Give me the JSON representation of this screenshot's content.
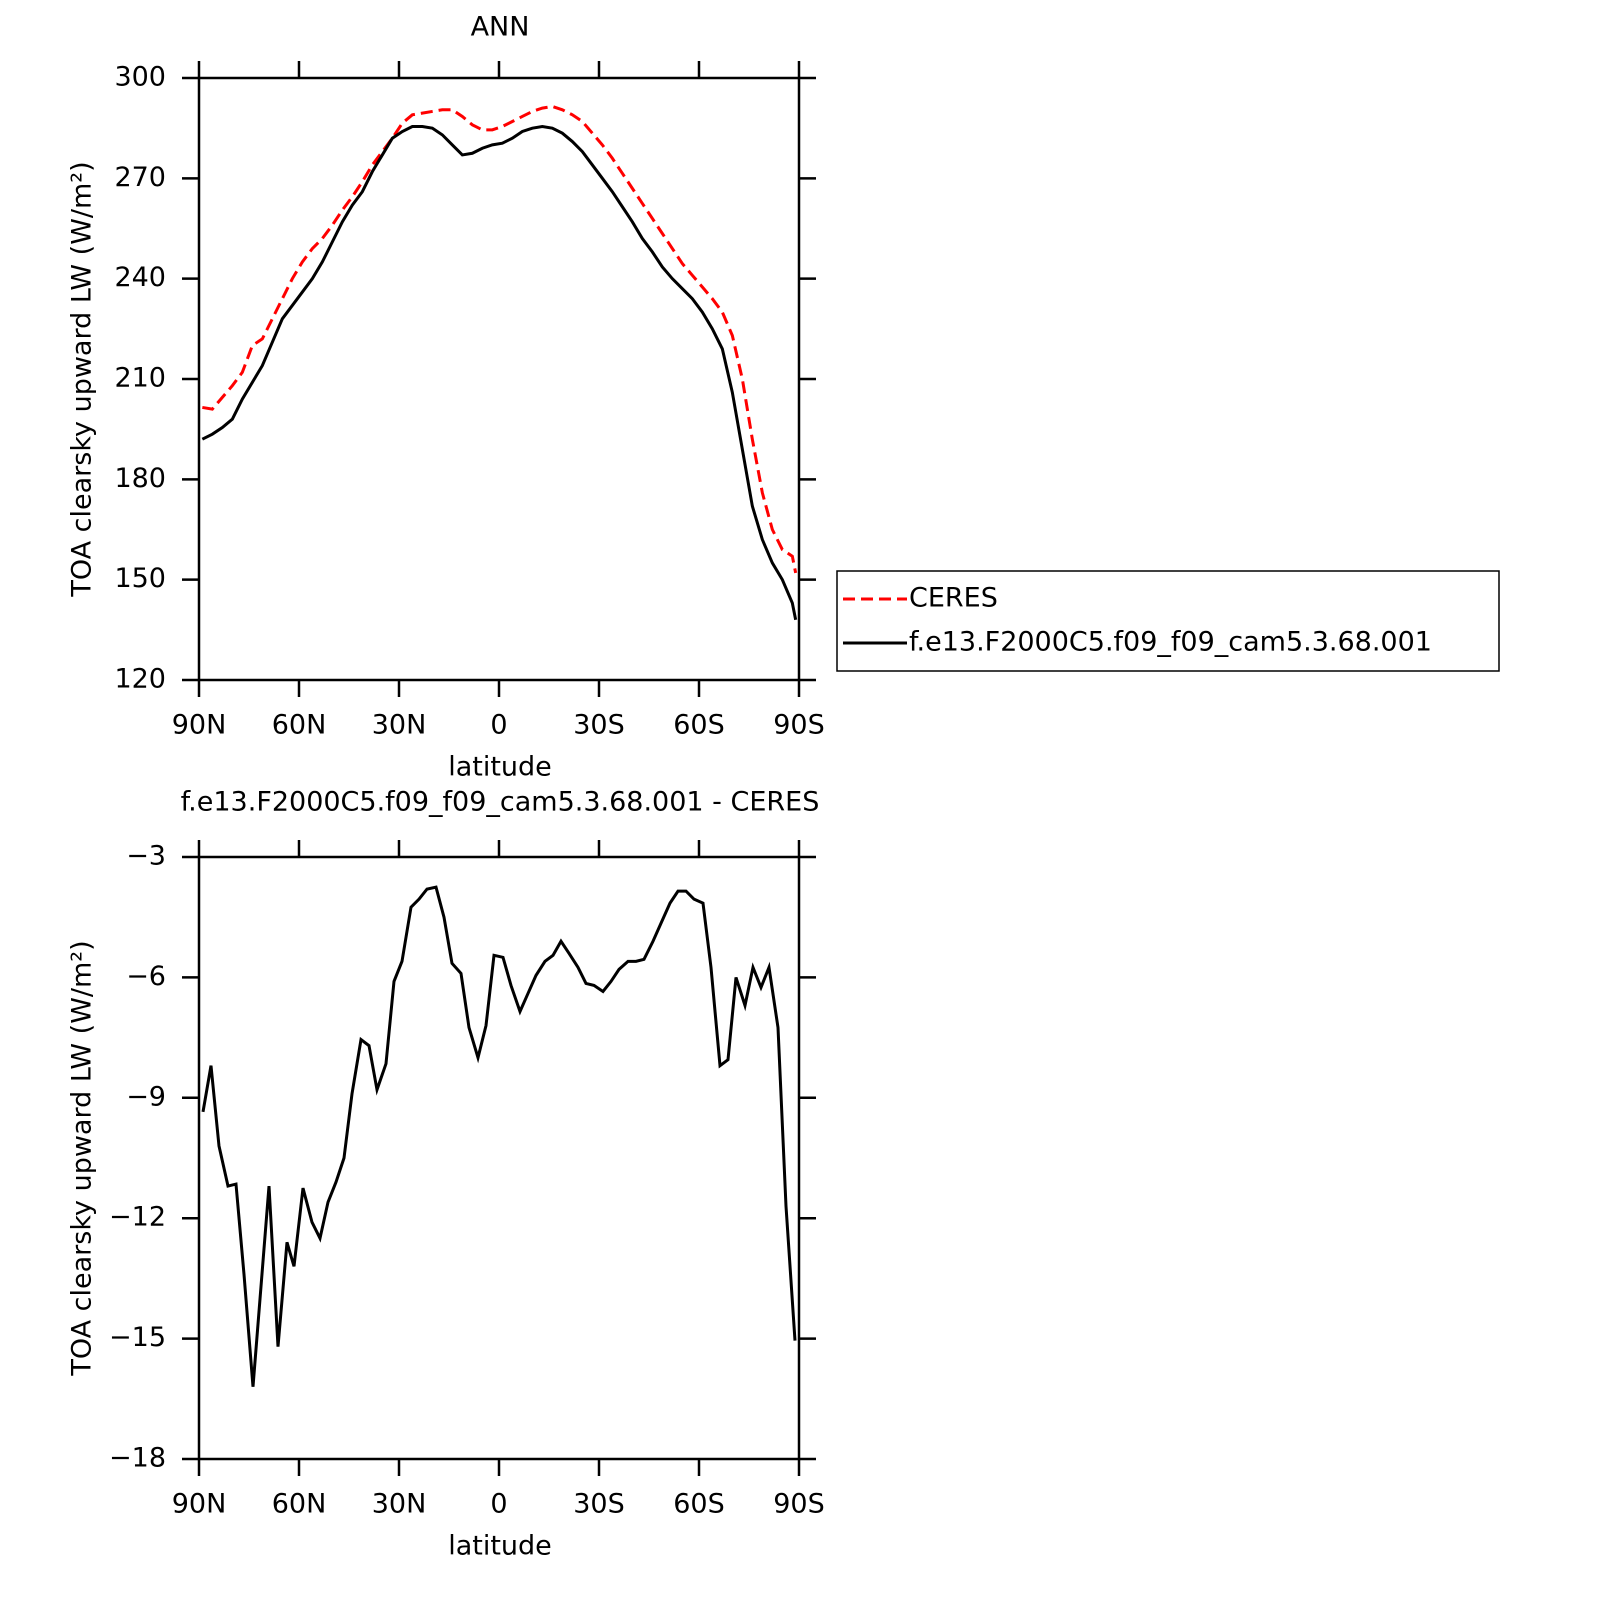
{
  "chart_data": [
    {
      "type": "line",
      "title": "ANN",
      "x_label": "latitude",
      "y_label": "TOA clearsky upward LW (W/m²)",
      "x": [
        89,
        86,
        83,
        80,
        77,
        74,
        71,
        68,
        65,
        62,
        59,
        56,
        53,
        50,
        47,
        44,
        41,
        38,
        35,
        32,
        29,
        26,
        23,
        20,
        17,
        14,
        11,
        8,
        5,
        2,
        -1,
        -4,
        -7,
        -10,
        -13,
        -16,
        -19,
        -22,
        -25,
        -28,
        -31,
        -34,
        -37,
        -40,
        -43,
        -46,
        -49,
        -52,
        -55,
        -58,
        -61,
        -64,
        -67,
        -70,
        -73,
        -76,
        -79,
        -82,
        -85,
        -88,
        -89
      ],
      "series": [
        {
          "name": "CERES",
          "color": "#ff0000",
          "dashed": true,
          "values": [
            201.5,
            201,
            204.5,
            208,
            212,
            220,
            222,
            228,
            234,
            240,
            245,
            249,
            252,
            256,
            260.5,
            264.5,
            269,
            274,
            278,
            282,
            286.5,
            289,
            289.5,
            290,
            290.5,
            290.5,
            288.5,
            286,
            284.5,
            284.5,
            285.5,
            287,
            288.5,
            290,
            291,
            291.5,
            290.5,
            289,
            287,
            283.5,
            280,
            276,
            271.5,
            267,
            262.5,
            258,
            253.5,
            249,
            244.5,
            241,
            237.5,
            234,
            230,
            223,
            210,
            192,
            176,
            165,
            159,
            157,
            152
          ]
        },
        {
          "name": "f.e13.F2000C5.f09_f09_cam5.3.68.001",
          "color": "#000000",
          "dashed": false,
          "values": [
            192,
            193.5,
            195.5,
            198,
            204,
            209,
            214,
            221,
            228,
            232,
            236,
            240,
            245,
            251,
            257,
            262,
            266,
            272,
            277,
            282,
            284,
            285.5,
            285.5,
            285,
            283,
            280,
            277,
            277.5,
            279,
            280,
            280.5,
            282,
            284,
            285,
            285.5,
            285,
            283.5,
            281,
            278,
            274,
            270,
            266,
            261.5,
            257,
            252,
            248,
            243.5,
            240,
            237,
            234,
            230,
            225,
            219,
            206,
            189,
            172,
            162,
            155,
            150,
            143,
            138
          ]
        }
      ],
      "xlim": [
        90,
        -90
      ],
      "xticks": [
        {
          "value": 90,
          "label": "90N"
        },
        {
          "value": 60,
          "label": "60N"
        },
        {
          "value": 30,
          "label": "30N"
        },
        0,
        {
          "value": -30,
          "label": "30S"
        },
        {
          "value": -60,
          "label": "60S"
        },
        {
          "value": -90,
          "label": "90S"
        }
      ],
      "ylim": [
        120,
        300
      ],
      "yticks": [
        120,
        150,
        180,
        210,
        240,
        270,
        300
      ],
      "legend": "right"
    },
    {
      "type": "line",
      "title": "f.e13.F2000C5.f09_f09_cam5.3.68.001 - CERES",
      "x_label": "latitude",
      "y_label": "TOA clearsky upward LW (W/m²)",
      "x": [
        88.8,
        86.4,
        84,
        81.3,
        78.9,
        76.5,
        73.8,
        69,
        66.3,
        63.6,
        61.5,
        58.8,
        56.1,
        53.7,
        51.3,
        48.9,
        46.5,
        44.1,
        41.4,
        39,
        36.6,
        33.9,
        31.5,
        29.1,
        26.4,
        24,
        21.6,
        18.9,
        16.5,
        14.1,
        11.4,
        9,
        6.3,
        3.9,
        1.5,
        -1.2,
        -3.6,
        -6.3,
        -8.7,
        -11.1,
        -13.8,
        -16.2,
        -18.6,
        -21,
        -23.7,
        -26.1,
        -28.5,
        -31.2,
        -33.6,
        -36,
        -38.7,
        -41.1,
        -43.5,
        -46.2,
        -48.6,
        -51.3,
        -53.7,
        -56.1,
        -58.5,
        -61.2,
        -63.6,
        -66.3,
        -68.7,
        -71.1,
        -73.8,
        -76.2,
        -78.6,
        -81,
        -83.7,
        -86.1,
        -88.8
      ],
      "series": [
        {
          "color": "#000000",
          "dashed": false,
          "values": [
            -9.35,
            -8.2,
            -10.2,
            -11.2,
            -11.15,
            -13.4,
            -16.2,
            -11.2,
            -15.2,
            -12.6,
            -13.2,
            -11.25,
            -12.1,
            -12.5,
            -11.6,
            -11.1,
            -10.5,
            -8.9,
            -7.55,
            -7.7,
            -8.8,
            -8.15,
            -6.1,
            -5.6,
            -4.25,
            -4.05,
            -3.8,
            -3.75,
            -4.5,
            -5.65,
            -5.9,
            -7.25,
            -8,
            -7.2,
            -5.45,
            -5.5,
            -6.2,
            -6.85,
            -6.4,
            -5.95,
            -5.6,
            -5.45,
            -5.1,
            -5.4,
            -5.75,
            -6.15,
            -6.2,
            -6.35,
            -6.1,
            -5.8,
            -5.6,
            -5.6,
            -5.55,
            -5.1,
            -4.65,
            -4.15,
            -3.85,
            -3.85,
            -4.05,
            -4.15,
            -5.75,
            -8.2,
            -8.05,
            -6,
            -6.7,
            -5.75,
            -6.25,
            -5.75,
            -7.25,
            -11.7,
            -15.05
          ]
        }
      ],
      "xlim": [
        90,
        -90
      ],
      "xticks": [
        {
          "value": 90,
          "label": "90N"
        },
        {
          "value": 60,
          "label": "60N"
        },
        {
          "value": 30,
          "label": "30N"
        },
        0,
        {
          "value": -30,
          "label": "30S"
        },
        {
          "value": -60,
          "label": "60S"
        },
        {
          "value": -90,
          "label": "90S"
        }
      ],
      "ylim": [
        -18,
        -3
      ],
      "yticks": [
        {
          "value": -18,
          "label": "−18"
        },
        {
          "value": -15,
          "label": "−15"
        },
        {
          "value": -12,
          "label": "−12"
        },
        {
          "value": -9,
          "label": "−9"
        },
        {
          "value": -6,
          "label": "−6"
        },
        {
          "value": -3,
          "label": "−3"
        }
      ]
    }
  ]
}
